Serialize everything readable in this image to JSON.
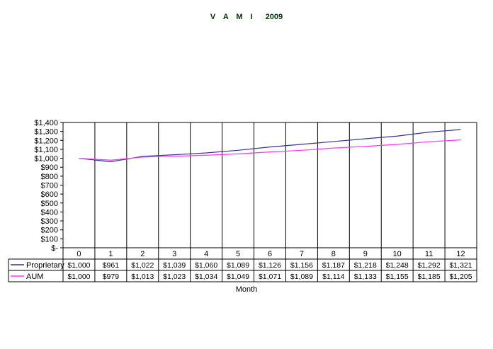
{
  "chart_data": {
    "type": "line",
    "title_main": "V A M I",
    "title_year": "2009",
    "xlabel": "Month",
    "ylabel": "",
    "ylim": [
      0,
      1400
    ],
    "y_ticks": [
      {
        "value": 0,
        "label": "$-"
      },
      {
        "value": 100,
        "label": "$100"
      },
      {
        "value": 200,
        "label": "$200"
      },
      {
        "value": 300,
        "label": "$300"
      },
      {
        "value": 400,
        "label": "$400"
      },
      {
        "value": 500,
        "label": "$500"
      },
      {
        "value": 600,
        "label": "$600"
      },
      {
        "value": 700,
        "label": "$700"
      },
      {
        "value": 800,
        "label": "$800"
      },
      {
        "value": 900,
        "label": "$900"
      },
      {
        "value": 1000,
        "label": "$1,000"
      },
      {
        "value": 1100,
        "label": "$1,100"
      },
      {
        "value": 1200,
        "label": "$1,200"
      },
      {
        "value": 1300,
        "label": "$1,300"
      },
      {
        "value": 1400,
        "label": "$1,400"
      }
    ],
    "categories": [
      "0",
      "1",
      "2",
      "3",
      "4",
      "5",
      "6",
      "7",
      "8",
      "9",
      "10",
      "11",
      "12"
    ],
    "series": [
      {
        "name": "Proprietary",
        "color": "#333399",
        "values": [
          1000,
          961,
          1022,
          1039,
          1060,
          1089,
          1126,
          1156,
          1187,
          1218,
          1248,
          1292,
          1321
        ],
        "labels": [
          "$1,000",
          "$961",
          "$1,022",
          "$1,039",
          "$1,060",
          "$1,089",
          "$1,126",
          "$1,156",
          "$1,187",
          "$1,218",
          "$1,248",
          "$1,292",
          "$1,321"
        ]
      },
      {
        "name": "AUM",
        "color": "#ff33ff",
        "values": [
          1000,
          979,
          1013,
          1023,
          1034,
          1049,
          1071,
          1089,
          1114,
          1133,
          1155,
          1185,
          1205
        ],
        "labels": [
          "$1,000",
          "$979",
          "$1,013",
          "$1,023",
          "$1,034",
          "$1,049",
          "$1,071",
          "$1,089",
          "$1,114",
          "$1,133",
          "$1,155",
          "$1,185",
          "$1,205"
        ]
      }
    ],
    "grid": "vertical",
    "legend": "data-table"
  }
}
